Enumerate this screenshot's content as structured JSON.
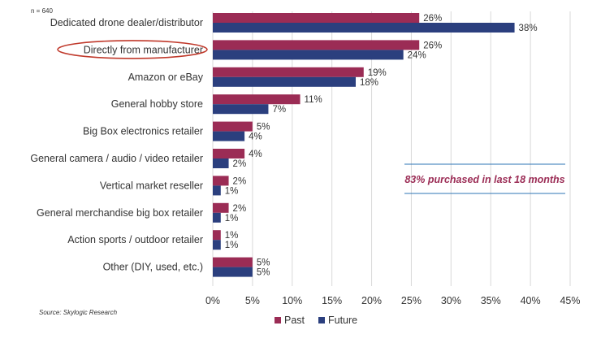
{
  "chart_data": {
    "type": "bar",
    "orientation": "horizontal",
    "sample_note": "n = 640",
    "categories": [
      "Dedicated drone dealer/distributor",
      "Directly from manufacturer",
      "Amazon or eBay",
      "General hobby store",
      "Big Box electronics retailer",
      "General camera / audio / video retailer",
      "Vertical market reseller",
      "General merchandise big box retailer",
      "Action sports / outdoor retailer",
      "Other (DIY, used, etc.)"
    ],
    "series": [
      {
        "name": "Past",
        "color": "#9b2c55",
        "values": [
          26,
          26,
          19,
          11,
          5,
          4,
          2,
          2,
          1,
          5
        ],
        "labels": [
          "26%",
          "26%",
          "19%",
          "11%",
          "5%",
          "4%",
          "2%",
          "2%",
          "1%",
          "5%"
        ]
      },
      {
        "name": "Future",
        "color": "#2b3f7e",
        "values": [
          38,
          24,
          18,
          7,
          4,
          2,
          1,
          1,
          1,
          5
        ],
        "labels": [
          "38%",
          "24%",
          "18%",
          "7%",
          "4%",
          "2%",
          "1%",
          "1%",
          "1%",
          "5%"
        ]
      }
    ],
    "xlim": [
      0,
      45
    ],
    "x_ticks": [
      0,
      5,
      10,
      15,
      20,
      25,
      30,
      35,
      40,
      45
    ],
    "x_tick_labels": [
      "0%",
      "5%",
      "10%",
      "15%",
      "20%",
      "25%",
      "30%",
      "35%",
      "40%",
      "45%"
    ],
    "grid": "vertical",
    "legend_position": "bottom",
    "highlighted_category": "Directly from manufacturer",
    "annotation": "83% purchased in last 18 months",
    "source": "Source: Skylogic Research",
    "grid_color": "#d9d9d9",
    "annotation_line_color": "#2e75b6",
    "annotation_text_color": "#9b2c55",
    "highlight_ellipse_color": "#c0392b"
  }
}
